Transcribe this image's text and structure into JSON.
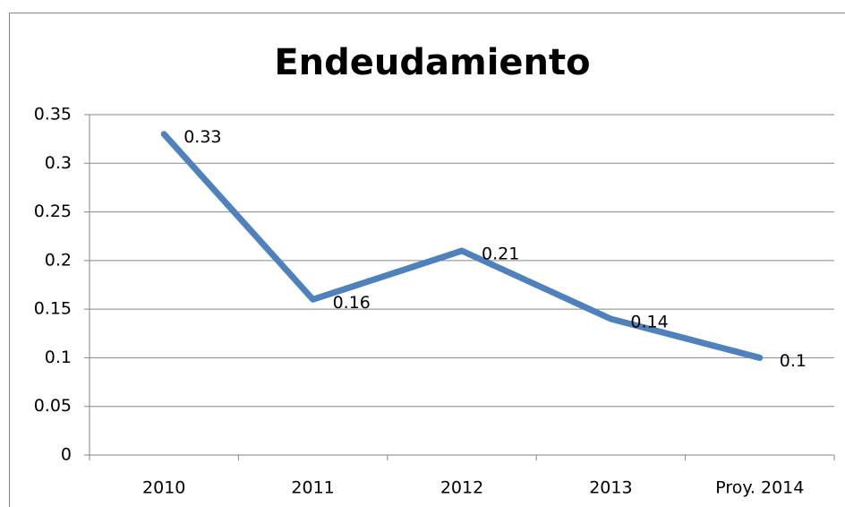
{
  "chart_data": {
    "type": "line",
    "title": "Endeudamiento",
    "categories": [
      "2010",
      "2011",
      "2012",
      "2013",
      "Proy. 2014"
    ],
    "values": [
      0.33,
      0.16,
      0.21,
      0.14,
      0.1
    ],
    "color": "#4f81bd",
    "ylim": [
      0,
      0.35
    ],
    "yticks": [
      0,
      0.05,
      0.1,
      0.15,
      0.2,
      0.25,
      0.3,
      0.35
    ],
    "grid": true
  }
}
